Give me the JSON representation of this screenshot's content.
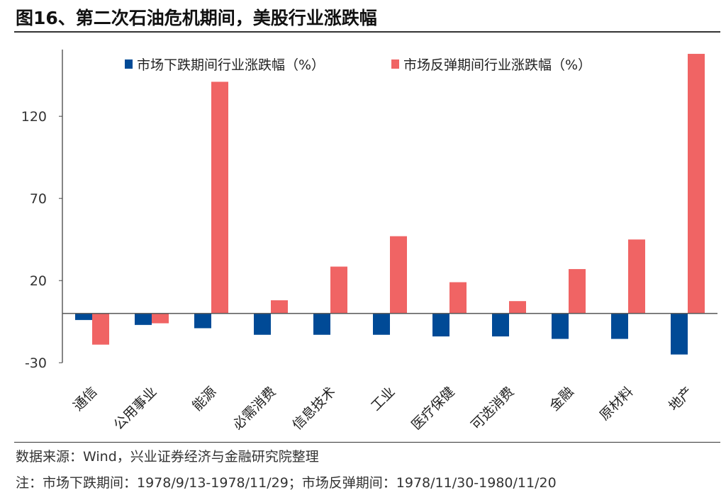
{
  "title": "图16、第二次石油危机期间，美股行业涨跌幅",
  "footer": {
    "source": "数据来源：Wind，兴业证券经济与金融研究院整理",
    "note": "注：市场下跌期间：1978/9/13-1978/11/29；市场反弹期间：1978/11/30-1980/11/20"
  },
  "chart_data": {
    "type": "bar",
    "title": "",
    "xlabel": "",
    "ylabel": "",
    "ylim": [
      -30,
      160
    ],
    "yticks": [
      -30,
      20,
      70,
      120
    ],
    "grid": false,
    "legend_position": "top",
    "categories": [
      "通信",
      "公用事业",
      "能源",
      "必需消费",
      "信息技术",
      "工业",
      "医疗保健",
      "可选消费",
      "金融",
      "原材料",
      "地产"
    ],
    "series": [
      {
        "name": "市场下跌期间行业涨跌幅（%）",
        "color": "#004a96",
        "values": [
          -4,
          -7,
          -9,
          -13,
          -13,
          -13,
          -14,
          -14,
          -15.5,
          -15.5,
          -25
        ]
      },
      {
        "name": "市场反弹期间行业涨跌幅（%）",
        "color": "#f06464",
        "values": [
          -19,
          -6,
          141,
          8,
          28.5,
          47,
          19,
          7.5,
          27,
          45,
          158
        ]
      }
    ]
  }
}
